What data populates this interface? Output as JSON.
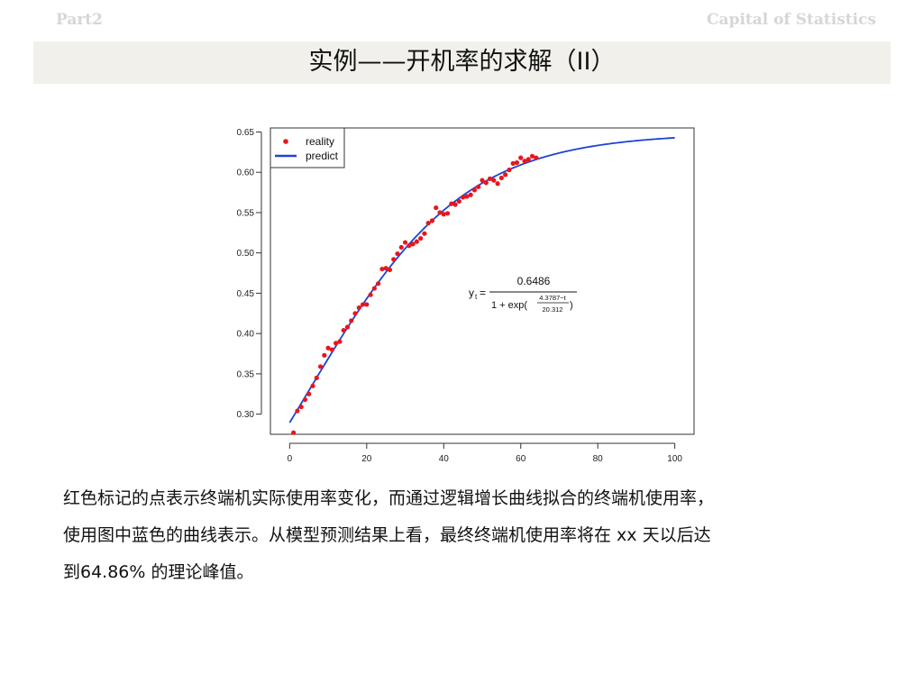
{
  "header": {
    "part": "Part2",
    "brand": "Capital of Statistics"
  },
  "slide": {
    "title": "实例——开机率的求解（II）"
  },
  "caption": {
    "lines": [
      "红色标记的点表示终端机实际使用率变化，而通过逻辑增长曲线拟合的终端机使用率，",
      "使用图中蓝色的曲线表示。从模型预测结果上看，最终终端机使用率将在 xx 天以后达",
      "到64.86% 的理论峰值。"
    ]
  },
  "chart_data": {
    "type": "scatter",
    "title": "",
    "xlabel": "",
    "ylabel": "",
    "xlim": [
      -5,
      105
    ],
    "ylim": [
      0.275,
      0.655
    ],
    "x_ticks": [
      "0",
      "20",
      "40",
      "60",
      "80",
      "100"
    ],
    "y_ticks": [
      "0.30",
      "0.35",
      "0.40",
      "0.45",
      "0.50",
      "0.55",
      "0.60",
      "0.65"
    ],
    "legend_position": "top-left",
    "grid": false,
    "series": [
      {
        "name": "reality",
        "kind": "points",
        "color": "#e8161b",
        "x": [
          1,
          2,
          3,
          4,
          5,
          6,
          7,
          8,
          9,
          10,
          11,
          12,
          13,
          14,
          15,
          16,
          17,
          18,
          19,
          20,
          21,
          22,
          23,
          24,
          25,
          26,
          27,
          28,
          29,
          30,
          31,
          32,
          33,
          34,
          35,
          36,
          37,
          38,
          39,
          40,
          41,
          42,
          43,
          44,
          45,
          46,
          47,
          48,
          49,
          50,
          51,
          52,
          53,
          54,
          55,
          56,
          57,
          58,
          59,
          60,
          61,
          62,
          63,
          64
        ],
        "y": [
          0.277,
          0.304,
          0.309,
          0.318,
          0.325,
          0.335,
          0.345,
          0.359,
          0.373,
          0.382,
          0.38,
          0.388,
          0.39,
          0.404,
          0.408,
          0.416,
          0.425,
          0.432,
          0.436,
          0.436,
          0.448,
          0.456,
          0.462,
          0.48,
          0.481,
          0.479,
          0.492,
          0.499,
          0.507,
          0.513,
          0.509,
          0.511,
          0.514,
          0.518,
          0.524,
          0.537,
          0.54,
          0.556,
          0.55,
          0.548,
          0.549,
          0.561,
          0.56,
          0.564,
          0.569,
          0.57,
          0.572,
          0.578,
          0.582,
          0.59,
          0.587,
          0.592,
          0.59,
          0.586,
          0.593,
          0.597,
          0.603,
          0.611,
          0.612,
          0.618,
          0.614,
          0.616,
          0.62,
          0.618
        ]
      },
      {
        "name": "predict",
        "kind": "line",
        "color": "#1d43d6",
        "formula": {
          "a": 0.6486,
          "b": 4.3787,
          "c": 20.312
        },
        "x_range": [
          0,
          100
        ]
      }
    ],
    "annotation": {
      "lhs": "y",
      "subscript": "t",
      "numerator": "0.6486",
      "denominator_prefix": "1 + exp(",
      "exp_numerator": "4.3787−t",
      "exp_denominator": "20.312",
      "denominator_suffix": ")"
    }
  }
}
